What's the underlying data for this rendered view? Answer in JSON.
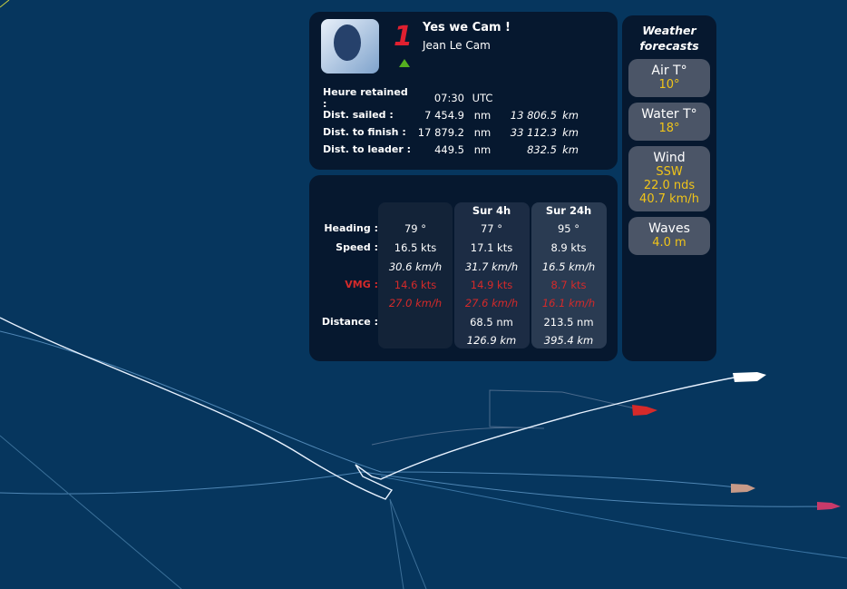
{
  "skipper": {
    "rank": "1",
    "boat": "Yes we Cam !",
    "name": "Jean Le Cam",
    "trend": "up",
    "rank_color": "#e02030"
  },
  "stats": [
    {
      "label": "Heure retained :",
      "value": "07:30",
      "unit": "UTC",
      "value_km": "",
      "unit_km": ""
    },
    {
      "label": "Dist. sailed :",
      "value": "7 454.9",
      "unit": "nm",
      "value_km": "13 806.5",
      "unit_km": "km"
    },
    {
      "label": "Dist. to finish :",
      "value": "17 879.2",
      "unit": "nm",
      "value_km": "33 112.3",
      "unit_km": "km"
    },
    {
      "label": "Dist. to leader :",
      "value": "449.5",
      "unit": "nm",
      "value_km": "832.5",
      "unit_km": "km"
    }
  ],
  "perf": {
    "headers": [
      "",
      "Sur 4h",
      "Sur 24h"
    ],
    "labels": {
      "heading": "Heading :",
      "speed": "Speed :",
      "vmg": "VMG :",
      "distance": "Distance :"
    },
    "columns": [
      {
        "heading": "79 °",
        "speed_kts": "16.5 kts",
        "speed_kmh": "30.6 km/h",
        "vmg_kts": "14.6 kts",
        "vmg_kmh": "27.0 km/h",
        "dist_nm": "",
        "dist_km": ""
      },
      {
        "heading": "77 °",
        "speed_kts": "17.1 kts",
        "speed_kmh": "31.7 km/h",
        "vmg_kts": "14.9 kts",
        "vmg_kmh": "27.6 km/h",
        "dist_nm": "68.5 nm",
        "dist_km": "126.9 km"
      },
      {
        "heading": "95 °",
        "speed_kts": "8.9 kts",
        "speed_kmh": "16.5 km/h",
        "vmg_kts": "8.7 kts",
        "vmg_kmh": "16.1 km/h",
        "dist_nm": "213.5 nm",
        "dist_km": "395.4 km"
      }
    ]
  },
  "weather": {
    "title_line1": "Weather",
    "title_line2": "forecasts",
    "air": {
      "label": "Air T°",
      "value": "10°"
    },
    "water": {
      "label": "Water T°",
      "value": "18°"
    },
    "wind": {
      "label": "Wind",
      "direction": "SSW",
      "speed_nds": "22.0 nds",
      "speed_kmh": "40.7 km/h"
    },
    "waves": {
      "label": "Waves",
      "value": "4.0 m"
    }
  },
  "colors": {
    "sea": "#06365e",
    "panel": "#06182f",
    "vmg": "#d52a2a",
    "weather_value": "#f0c419"
  }
}
